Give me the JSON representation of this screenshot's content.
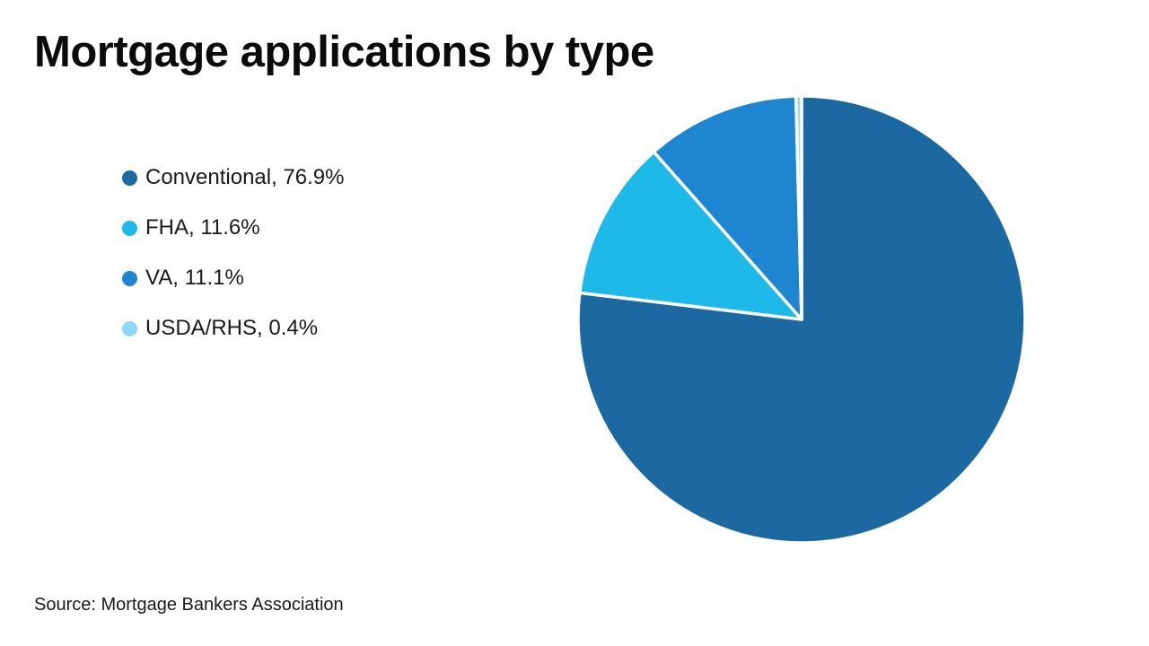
{
  "header": {
    "title": "Mortgage applications by type"
  },
  "legend": {
    "items": [
      {
        "label": "Conventional",
        "value_text": "76.9%",
        "text": "Conventional, 76.9%"
      },
      {
        "label": "FHA",
        "value_text": "11.6%",
        "text": "FHA, 11.6%"
      },
      {
        "label": "VA",
        "value_text": "11.1%",
        "text": "VA, 11.1%"
      },
      {
        "label": "USDA/RHS",
        "value_text": "0.4%",
        "text": "USDA/RHS, 0.4%"
      }
    ]
  },
  "source": {
    "text": "Source: Mortgage Bankers Association"
  },
  "chart_data": {
    "type": "pie",
    "title": "Mortgage applications by type",
    "labels": [
      "Conventional",
      "FHA",
      "VA",
      "USDA/RHS"
    ],
    "values": [
      76.9,
      11.6,
      11.1,
      0.4
    ],
    "unit": "%",
    "colors": [
      "#1B69A0",
      "#1DB9E9",
      "#1E85D1",
      "#8FD9F6"
    ],
    "separator_color": "#FFFFFF",
    "start_angle_deg": 0,
    "direction": "clockwise",
    "legend_position": "left",
    "source": "Source: Mortgage Bankers Association"
  }
}
